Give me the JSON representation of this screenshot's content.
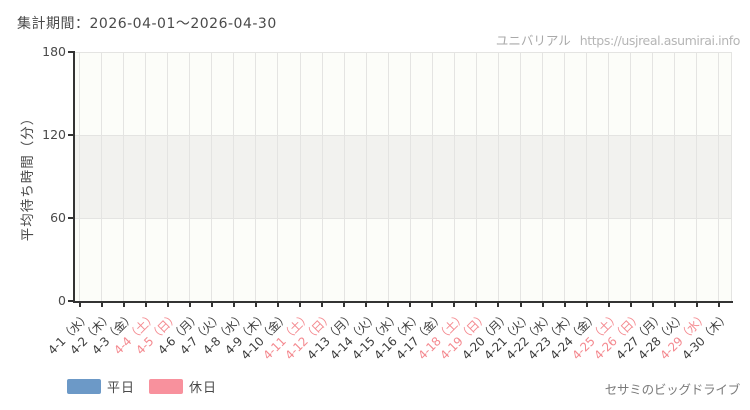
{
  "header": {
    "period": "集計期間：2026-04-01～2026-04-30",
    "brand": "ユニバリアル",
    "url": "https://usjreal.asumirai.info"
  },
  "footer": {
    "attraction": "セサミのビッグドライブ"
  },
  "legend": {
    "items": [
      {
        "label": "平日",
        "color": "#6c99c7"
      },
      {
        "label": "休日",
        "color": "#f8919d"
      }
    ]
  },
  "colors": {
    "axis": "#333333",
    "grid": "#e4e4e2",
    "band": "#f2f2ef",
    "plot_bg": "#fcfdf9",
    "weekday_label": "#3f3f3f",
    "holiday_label": "#f48a90",
    "ytick_label": "#4a4a4a",
    "title_text": "#4a4a4a",
    "watermark_brand": "#a9a9a9",
    "watermark_url": "#b5b5b5",
    "attraction_text": "#7a7a7a"
  },
  "chart_data": {
    "type": "line",
    "title": "集計期間：2026-04-01～2026-04-30",
    "xlabel": "",
    "ylabel": "平均待ち時間（分）",
    "ylim": [
      0,
      180
    ],
    "y_ticks": [
      0,
      60,
      120,
      180
    ],
    "grid": true,
    "legend_position": "bottom-left",
    "shaded_band": {
      "from": 60,
      "to": 120
    },
    "categories": [
      "4-1（水）",
      "4-2（木）",
      "4-3（金）",
      "4-4（土）",
      "4-5（日）",
      "4-6（月）",
      "4-7（火）",
      "4-8（水）",
      "4-9（木）",
      "4-10（金）",
      "4-11（土）",
      "4-12（日）",
      "4-13（月）",
      "4-14（火）",
      "4-15（水）",
      "4-16（木）",
      "4-17（金）",
      "4-18（土）",
      "4-19（日）",
      "4-20（月）",
      "4-21（火）",
      "4-22（水）",
      "4-23（木）",
      "4-24（金）",
      "4-25（土）",
      "4-26（日）",
      "4-27（月）",
      "4-28（火）",
      "4-29（水）",
      "4-30（木）"
    ],
    "holiday_flags": [
      false,
      false,
      false,
      true,
      true,
      false,
      false,
      false,
      false,
      false,
      true,
      true,
      false,
      false,
      false,
      false,
      false,
      true,
      true,
      false,
      false,
      false,
      false,
      false,
      true,
      true,
      false,
      false,
      true,
      false
    ],
    "series": [
      {
        "name": "平日",
        "color": "#6c99c7",
        "values": [
          null,
          null,
          null,
          null,
          null,
          null,
          null,
          null,
          null,
          null,
          null,
          null,
          null,
          null,
          null,
          null,
          null,
          null,
          null,
          null,
          null,
          null,
          null,
          null,
          null,
          null,
          null,
          null,
          null,
          null
        ]
      },
      {
        "name": "休日",
        "color": "#f8919d",
        "values": [
          null,
          null,
          null,
          null,
          null,
          null,
          null,
          null,
          null,
          null,
          null,
          null,
          null,
          null,
          null,
          null,
          null,
          null,
          null,
          null,
          null,
          null,
          null,
          null,
          null,
          null,
          null,
          null,
          null,
          null
        ]
      }
    ]
  }
}
